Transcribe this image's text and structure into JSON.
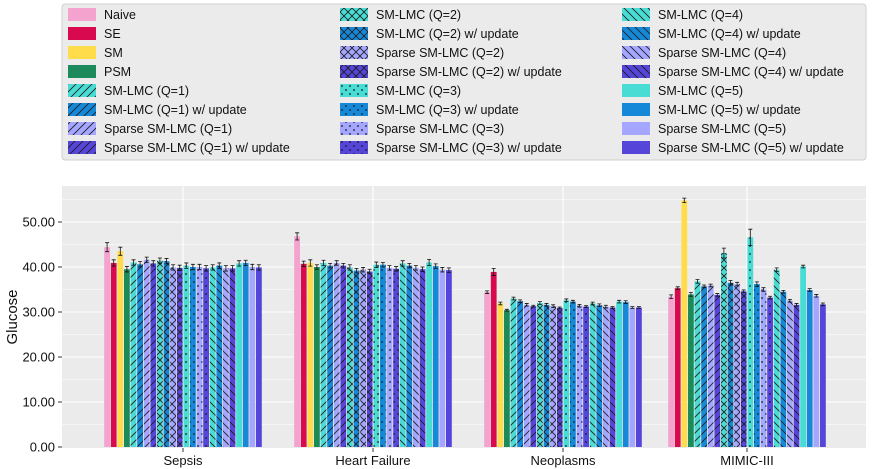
{
  "chart_data": {
    "type": "bar",
    "title": "",
    "xlabel": "",
    "ylabel": "Glucose",
    "ylim": [
      0,
      57
    ],
    "yticks": [
      0,
      10,
      20,
      30,
      40,
      50
    ],
    "ytick_labels": [
      "0.00",
      "10.00",
      "20.00",
      "30.00",
      "40.00",
      "50.00"
    ],
    "grid": true,
    "legend_position": "top",
    "categories": [
      "Sepsis",
      "Heart Failure",
      "Neoplasms",
      "MIMIC-III"
    ],
    "series": [
      {
        "name": "Naive",
        "color": "#f4a3cf",
        "hatch": "none",
        "values": [
          44.4,
          46.8,
          34.4,
          33.4
        ],
        "errors": [
          1.0,
          0.8,
          0.3,
          0.4
        ]
      },
      {
        "name": "SE",
        "color": "#d8094f",
        "hatch": "none",
        "values": [
          40.9,
          40.7,
          38.9,
          35.3
        ],
        "errors": [
          0.7,
          0.6,
          0.8,
          0.3
        ]
      },
      {
        "name": "SM",
        "color": "#ffdc4a",
        "hatch": "none",
        "values": [
          43.5,
          40.9,
          31.9,
          54.8
        ],
        "errors": [
          0.9,
          0.7,
          0.3,
          0.5
        ]
      },
      {
        "name": "PSM",
        "color": "#1d8a5c",
        "hatch": "none",
        "values": [
          39.5,
          40.0,
          30.4,
          33.9
        ],
        "errors": [
          0.6,
          0.5,
          0.2,
          0.4
        ]
      },
      {
        "name": "SM-LMC (Q=1)",
        "color": "#49dcd4",
        "hatch": "/",
        "values": [
          41.0,
          40.9,
          33.0,
          36.8
        ],
        "errors": [
          0.6,
          0.6,
          0.3,
          0.4
        ]
      },
      {
        "name": "SM-LMC (Q=1) w/ update",
        "color": "#1688d8",
        "hatch": "/",
        "values": [
          40.6,
          40.3,
          32.4,
          35.7
        ],
        "errors": [
          0.6,
          0.5,
          0.3,
          0.3
        ]
      },
      {
        "name": "Sparse SM-LMC (Q=1)",
        "color": "#a5a6ff",
        "hatch": "/",
        "values": [
          41.6,
          40.9,
          31.6,
          35.9
        ],
        "errors": [
          0.6,
          0.5,
          0.3,
          0.3
        ]
      },
      {
        "name": "Sparse SM-LMC (Q=1) w/ update",
        "color": "#5545d8",
        "hatch": "/",
        "values": [
          40.8,
          40.3,
          31.3,
          33.8
        ],
        "errors": [
          0.6,
          0.5,
          0.2,
          0.3
        ]
      },
      {
        "name": "SM-LMC (Q=2)",
        "color": "#49dcd4",
        "hatch": "x",
        "values": [
          41.4,
          39.9,
          32.0,
          43.1
        ],
        "errors": [
          0.6,
          0.6,
          0.3,
          1.1
        ]
      },
      {
        "name": "SM-LMC (Q=2) w/ update",
        "color": "#1688d8",
        "hatch": "x",
        "values": [
          41.3,
          39.2,
          31.6,
          36.5
        ],
        "errors": [
          0.6,
          0.5,
          0.3,
          0.5
        ]
      },
      {
        "name": "Sparse SM-LMC (Q=2)",
        "color": "#a5a6ff",
        "hatch": "x",
        "values": [
          39.9,
          39.4,
          31.3,
          36.2
        ],
        "errors": [
          0.6,
          0.5,
          0.3,
          0.4
        ]
      },
      {
        "name": "Sparse SM-LMC (Q=2) w/ update",
        "color": "#5545d8",
        "hatch": "x",
        "values": [
          39.8,
          39.0,
          30.9,
          34.6
        ],
        "errors": [
          0.6,
          0.5,
          0.2,
          0.3
        ]
      },
      {
        "name": "SM-LMC (Q=3)",
        "color": "#49dcd4",
        "hatch": ".",
        "values": [
          40.3,
          40.5,
          32.6,
          46.6
        ],
        "errors": [
          0.6,
          0.6,
          0.3,
          1.8
        ]
      },
      {
        "name": "SM-LMC (Q=3) w/ update",
        "color": "#1688d8",
        "hatch": ".",
        "values": [
          40.0,
          40.5,
          32.3,
          36.2
        ],
        "errors": [
          0.6,
          0.5,
          0.3,
          0.5
        ]
      },
      {
        "name": "Sparse SM-LMC (Q=3)",
        "color": "#a5a6ff",
        "hatch": ".",
        "values": [
          40.0,
          39.8,
          31.4,
          35.0
        ],
        "errors": [
          0.6,
          0.5,
          0.3,
          0.4
        ]
      },
      {
        "name": "Sparse SM-LMC (Q=3) w/ update",
        "color": "#5545d8",
        "hatch": ".",
        "values": [
          39.7,
          39.6,
          31.2,
          33.2
        ],
        "errors": [
          0.6,
          0.5,
          0.2,
          0.3
        ]
      },
      {
        "name": "SM-LMC (Q=4)",
        "color": "#49dcd4",
        "hatch": "\\",
        "values": [
          39.9,
          40.8,
          31.9,
          39.4
        ],
        "errors": [
          0.6,
          0.6,
          0.3,
          0.4
        ]
      },
      {
        "name": "SM-LMC (Q=4) w/ update",
        "color": "#1688d8",
        "hatch": "\\",
        "values": [
          40.3,
          40.3,
          31.5,
          34.5
        ],
        "errors": [
          0.6,
          0.5,
          0.3,
          0.3
        ]
      },
      {
        "name": "Sparse SM-LMC (Q=4)",
        "color": "#a5a6ff",
        "hatch": "\\",
        "values": [
          39.7,
          39.8,
          31.2,
          32.5
        ],
        "errors": [
          0.6,
          0.5,
          0.3,
          0.3
        ]
      },
      {
        "name": "Sparse SM-LMC (Q=4) w/ update",
        "color": "#5545d8",
        "hatch": "\\",
        "values": [
          39.7,
          39.5,
          31.0,
          31.6
        ],
        "errors": [
          0.6,
          0.5,
          0.2,
          0.3
        ]
      },
      {
        "name": "SM-LMC (Q=5)",
        "color": "#49dcd4",
        "hatch": "none",
        "values": [
          40.8,
          41.0,
          32.3,
          40.1
        ],
        "errors": [
          0.6,
          0.7,
          0.3,
          0.3
        ]
      },
      {
        "name": "SM-LMC (Q=5) w/ update",
        "color": "#1688d8",
        "hatch": "none",
        "values": [
          40.9,
          40.2,
          32.2,
          34.9
        ],
        "errors": [
          0.6,
          0.5,
          0.3,
          0.3
        ]
      },
      {
        "name": "Sparse SM-LMC (Q=5)",
        "color": "#a5a6ff",
        "hatch": "none",
        "values": [
          40.0,
          39.4,
          31.0,
          33.6
        ],
        "errors": [
          0.6,
          0.5,
          0.2,
          0.3
        ]
      },
      {
        "name": "Sparse SM-LMC (Q=5) w/ update",
        "color": "#5545d8",
        "hatch": "none",
        "values": [
          39.9,
          39.3,
          31.0,
          31.7
        ],
        "errors": [
          0.6,
          0.5,
          0.2,
          0.3
        ]
      }
    ]
  }
}
